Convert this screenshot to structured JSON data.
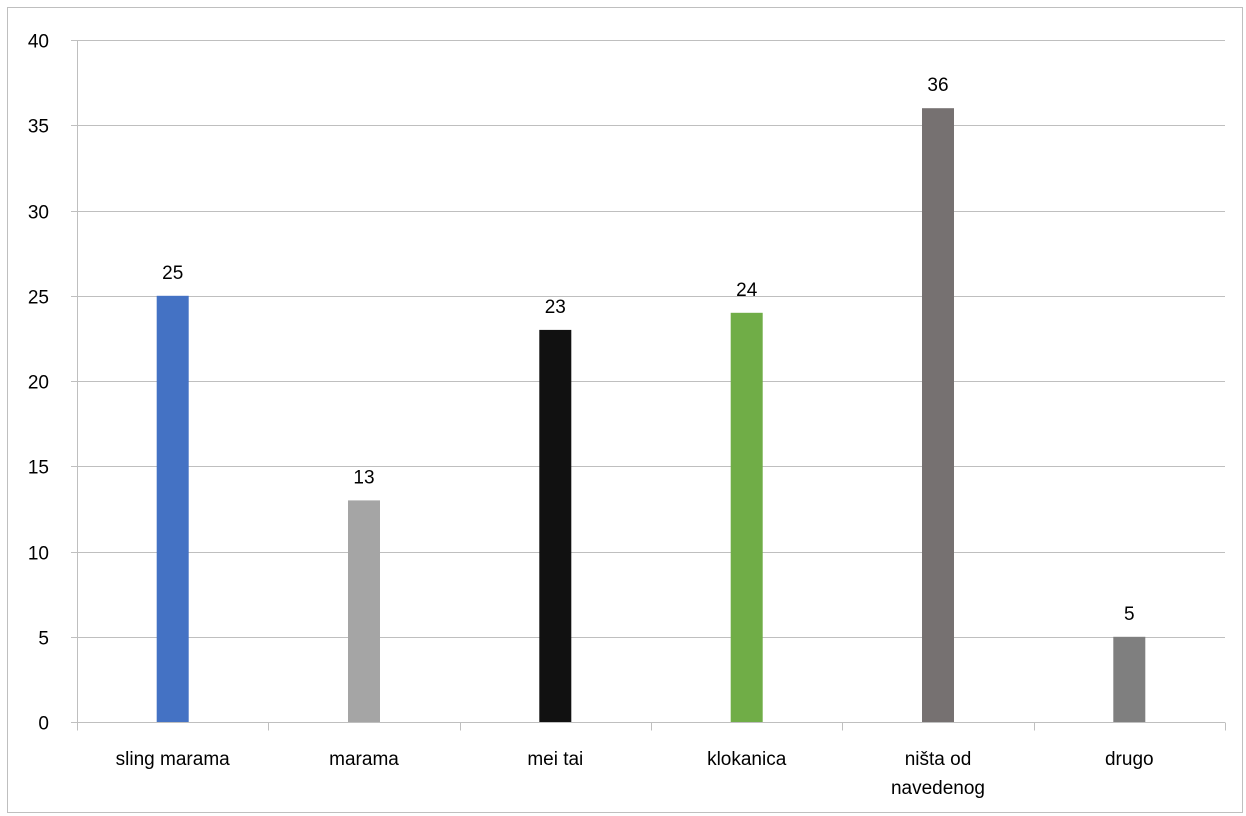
{
  "chart_data": {
    "type": "bar",
    "title": "",
    "xlabel": "",
    "ylabel": "",
    "ylim": [
      0,
      40
    ],
    "yticks": [
      0,
      5,
      10,
      15,
      20,
      25,
      30,
      35,
      40
    ],
    "grid": true,
    "legend": "none",
    "categories": [
      [
        "sling marama"
      ],
      [
        "marama"
      ],
      [
        "mei tai"
      ],
      [
        "klokanica"
      ],
      [
        "ništa od",
        "navedenog"
      ],
      [
        "drugo"
      ]
    ],
    "values": [
      25,
      13,
      23,
      24,
      36,
      5
    ],
    "bar_colors": [
      "#4472c4",
      "#a5a5a5",
      "#111111",
      "#70ad47",
      "#767171",
      "#7f7f7f"
    ]
  }
}
